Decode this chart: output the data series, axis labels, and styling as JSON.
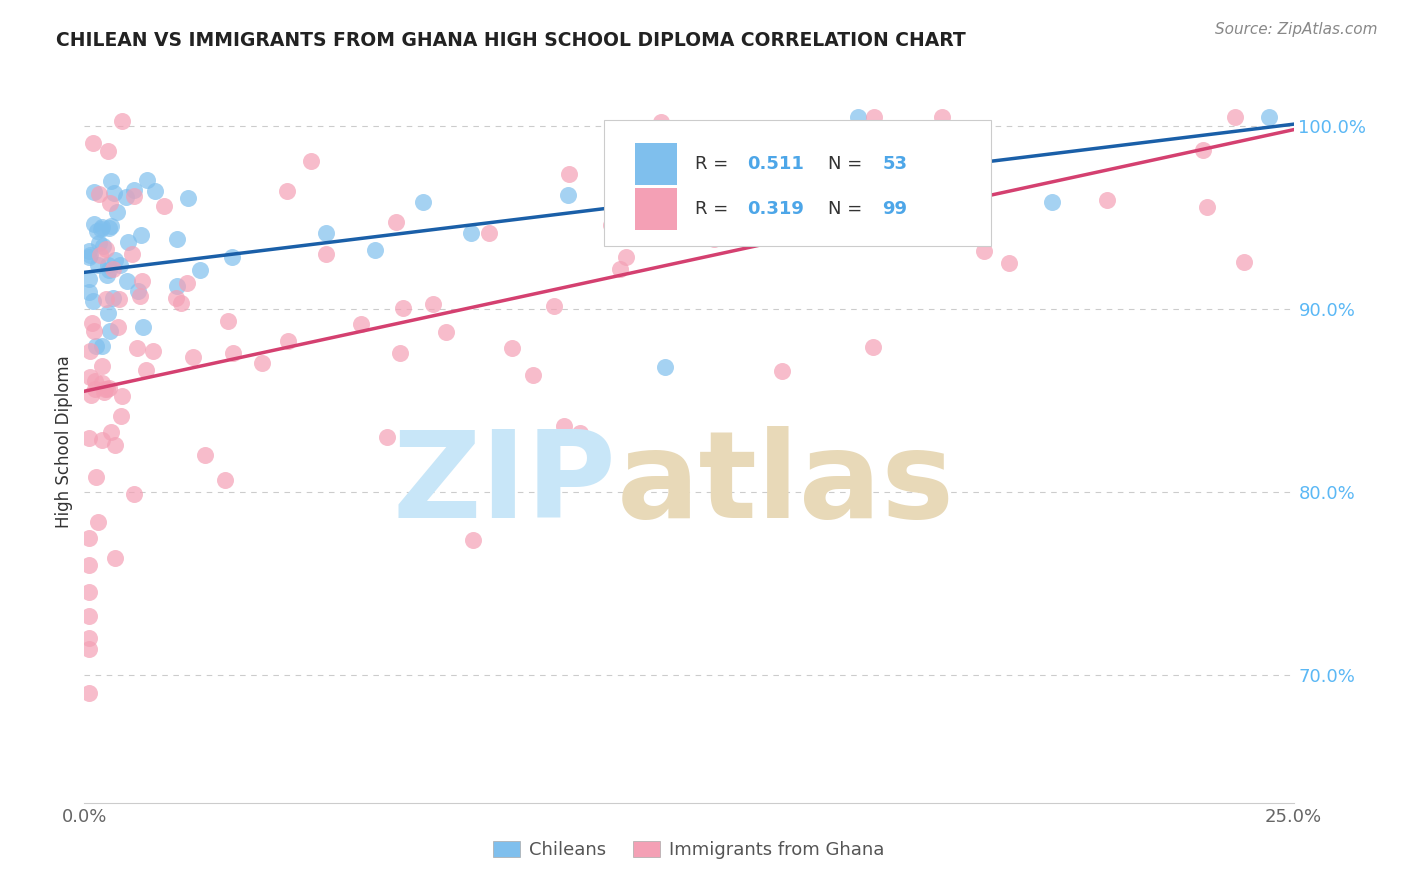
{
  "title": "CHILEAN VS IMMIGRANTS FROM GHANA HIGH SCHOOL DIPLOMA CORRELATION CHART",
  "source_text": "Source: ZipAtlas.com",
  "ylabel": "High School Diploma",
  "xlim": [
    0.0,
    0.25
  ],
  "ylim": [
    0.63,
    1.025
  ],
  "color_blue": "#7fbfed",
  "color_pink": "#f4a0b5",
  "color_blue_line": "#1a5fa8",
  "color_pink_line": "#d44070",
  "color_blue_text": "#4da6e8",
  "color_right_tick": "#5bb8f5",
  "watermark_zip_color": "#c8e6f8",
  "watermark_atlas_color": "#e8d9b8",
  "legend_r1": "0.511",
  "legend_n1": "53",
  "legend_r2": "0.319",
  "legend_n2": "99"
}
